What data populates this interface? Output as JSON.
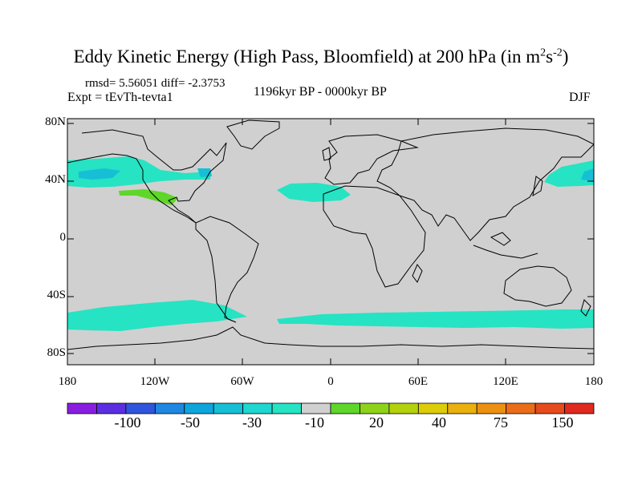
{
  "title": {
    "text": "Eddy Kinetic Energy (High Pass, Bloomfield) at 200 hPa (in m",
    "sup1": "2",
    "mid": "s",
    "sup2": "-2",
    "end": ")"
  },
  "stats_line": "rmsd= 5.56051 diff= -2.3753",
  "experiment": "Expt = tEvTh-tevta1",
  "period": "1196kyr BP - 0000kyr BP",
  "season": "DJF",
  "y_axis_labels": [
    "80N",
    "40N",
    "0",
    "40S",
    "80S"
  ],
  "x_axis_labels": [
    "180",
    "120W",
    "60W",
    "0",
    "60E",
    "120E",
    "180"
  ],
  "colorbar": {
    "labels": [
      "-100",
      "-50",
      "-30",
      "-10",
      "20",
      "40",
      "75",
      "150"
    ],
    "colors": [
      "#8a1ee0",
      "#5b2fe0",
      "#2f55dd",
      "#1f87e0",
      "#0ea5dd",
      "#17bfd6",
      "#1fd7cf",
      "#26e3c3",
      "#d0d0d0",
      "#5fd62a",
      "#8ed21c",
      "#b4d10f",
      "#dccc0a",
      "#e9b00e",
      "#ec9014",
      "#ea6d19",
      "#e54b1d",
      "#de2a1f"
    ]
  },
  "map_colors": {
    "ocean_land": "#d0d0d0",
    "neg_light": "#26e3c3",
    "neg_mid": "#17bfd6",
    "pos_light": "#5fd62a"
  }
}
